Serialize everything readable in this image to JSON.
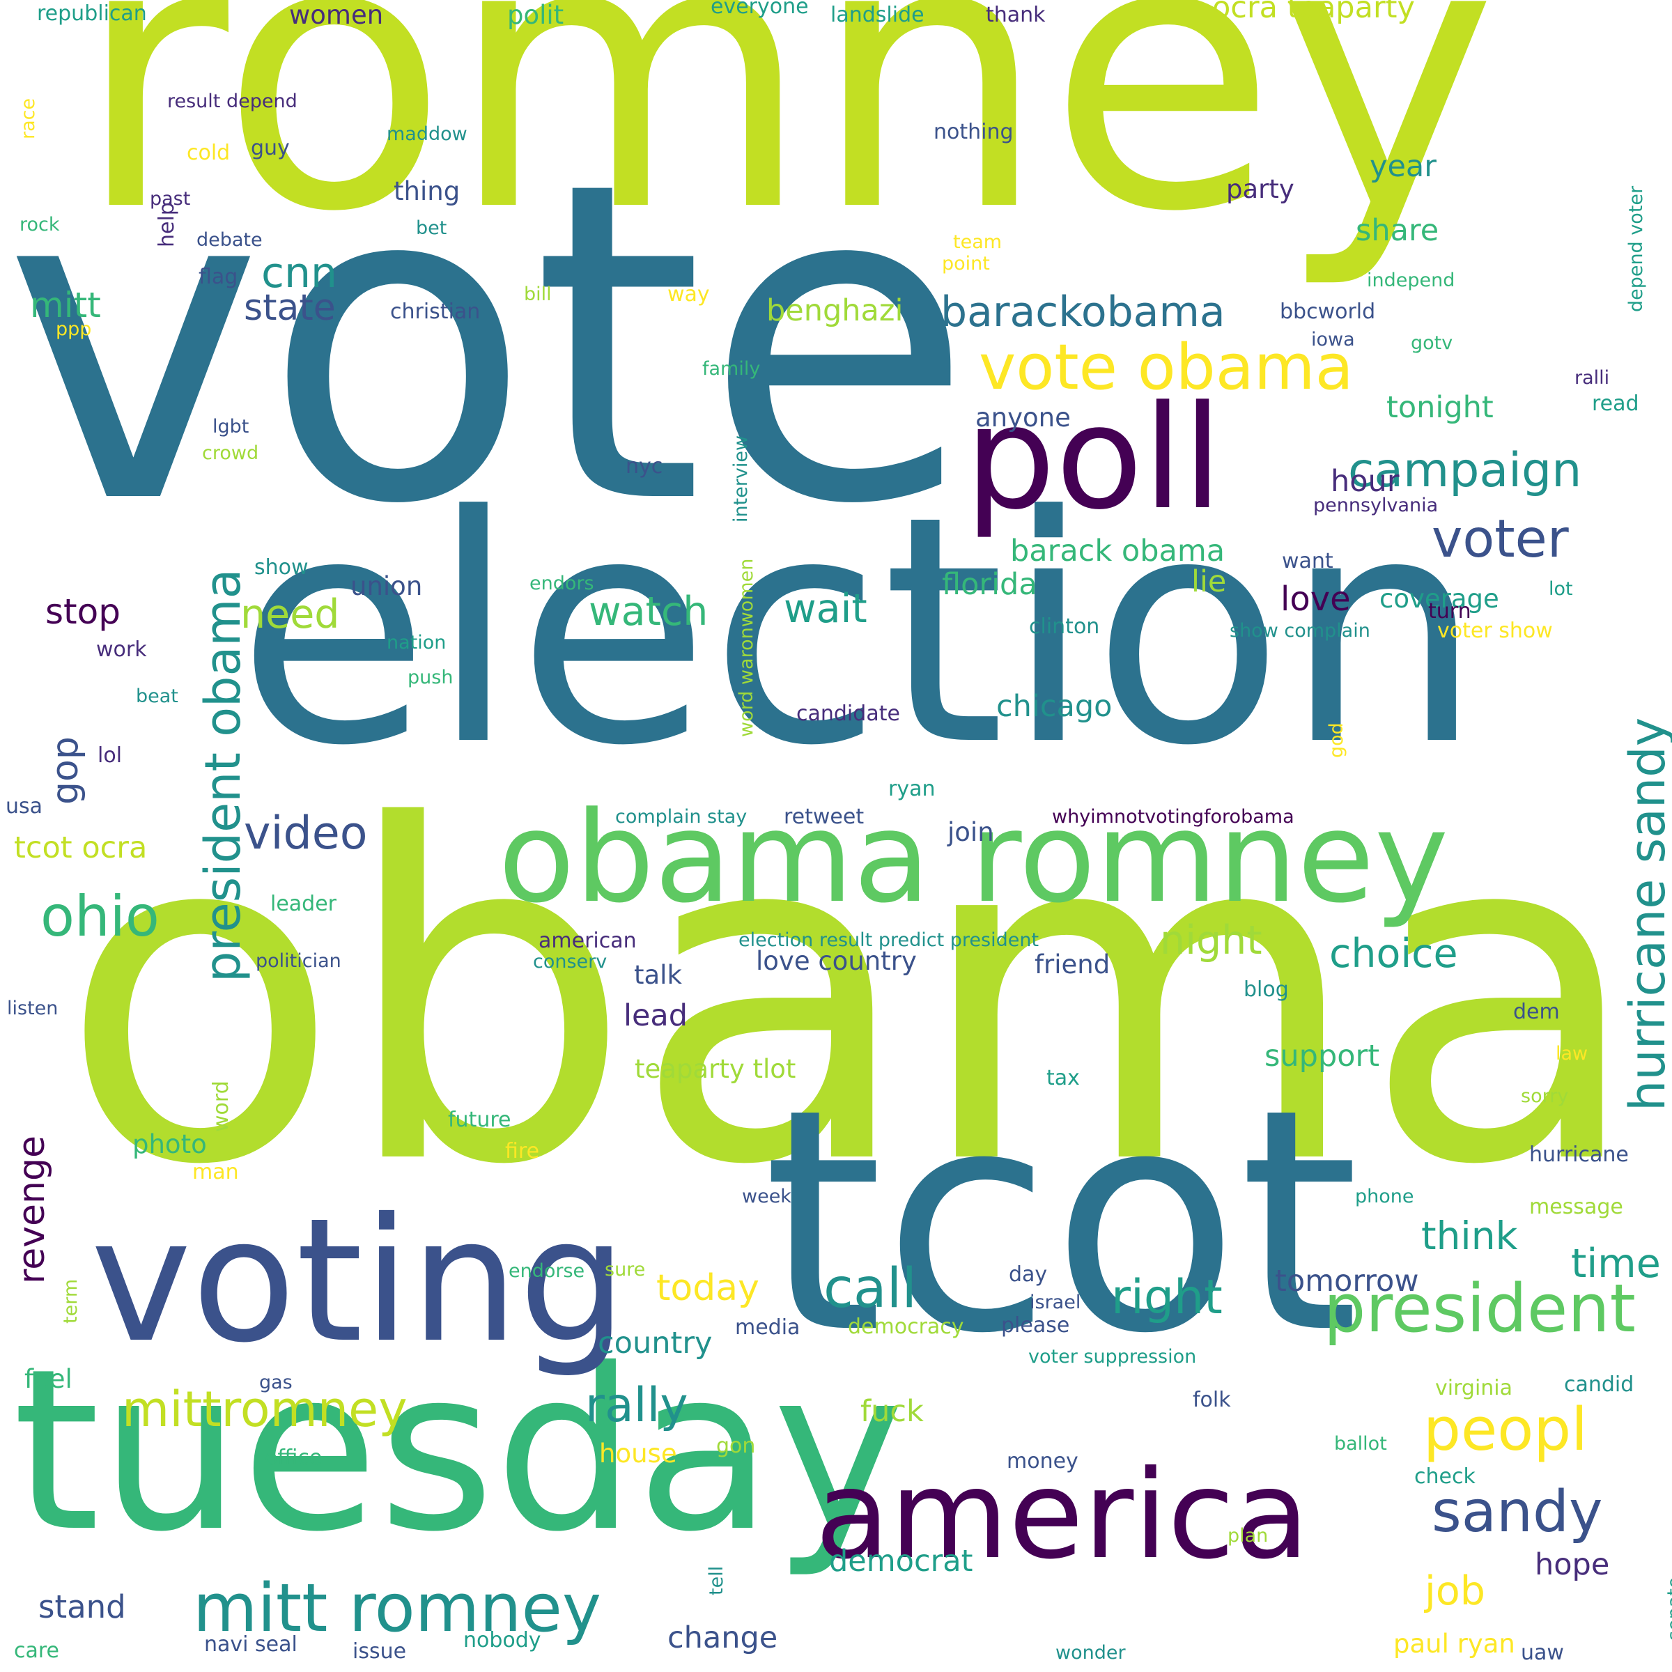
{
  "palette": {
    "c0": "#c2df23",
    "c1": "#b2dd2d",
    "c2": "#5ec962",
    "c3": "#35b779",
    "c4": "#21918c",
    "c5": "#2c728e",
    "c6": "#3b528b",
    "c7": "#472d7b",
    "c8": "#440154",
    "c9": "#fde725",
    "c10": "#a0da39",
    "c11": "#1f9e89"
  },
  "words": [
    {
      "t": "romney"
    },
    {
      "t": "vote"
    },
    {
      "t": "election"
    },
    {
      "t": "obama"
    },
    {
      "t": "tuesday"
    },
    {
      "t": "tcot"
    },
    {
      "t": "voting"
    },
    {
      "t": "america"
    },
    {
      "t": "obama romney"
    },
    {
      "t": "poll"
    },
    {
      "t": "vote obama"
    },
    {
      "t": "barackobama"
    },
    {
      "t": "mitt romney"
    },
    {
      "t": "president"
    },
    {
      "t": "mittromney"
    },
    {
      "t": "president obama"
    },
    {
      "t": "hurricane sandy"
    },
    {
      "t": "campaign"
    },
    {
      "t": "voter"
    },
    {
      "t": "cnn"
    },
    {
      "t": "state"
    },
    {
      "t": "mitt"
    },
    {
      "t": "benghazi"
    },
    {
      "t": "ocra teaparty"
    },
    {
      "t": "need"
    },
    {
      "t": "watch"
    },
    {
      "t": "wait"
    },
    {
      "t": "ohio"
    },
    {
      "t": "video"
    },
    {
      "t": "gop"
    },
    {
      "t": "stop"
    },
    {
      "t": "tcot ocra"
    },
    {
      "t": "revenge"
    },
    {
      "t": "barack obama"
    },
    {
      "t": "florida"
    },
    {
      "t": "love"
    },
    {
      "t": "call"
    },
    {
      "t": "right"
    },
    {
      "t": "think"
    },
    {
      "t": "sandy"
    },
    {
      "t": "peopl"
    },
    {
      "t": "rally"
    },
    {
      "t": "job"
    },
    {
      "t": "night"
    },
    {
      "t": "choice"
    },
    {
      "t": "time"
    },
    {
      "t": "today"
    },
    {
      "t": "stand"
    },
    {
      "t": "change"
    },
    {
      "t": "hope"
    },
    {
      "t": "democrat"
    },
    {
      "t": "chicago"
    },
    {
      "t": "tonight"
    },
    {
      "t": "year"
    },
    {
      "t": "share"
    },
    {
      "t": "hour"
    },
    {
      "t": "lie"
    },
    {
      "t": "lead"
    },
    {
      "t": "support"
    },
    {
      "t": "tomorrow"
    },
    {
      "t": "country"
    },
    {
      "t": "fuck"
    },
    {
      "t": "paul ryan"
    },
    {
      "t": "house"
    },
    {
      "t": "photo"
    },
    {
      "t": "love country"
    },
    {
      "t": "coverage"
    },
    {
      "t": "anyone"
    },
    {
      "t": "women"
    },
    {
      "t": "polit"
    },
    {
      "t": "party"
    },
    {
      "t": "thing"
    },
    {
      "t": "talk"
    },
    {
      "t": "friend"
    },
    {
      "t": "union"
    },
    {
      "t": "republican"
    },
    {
      "t": "everyone"
    },
    {
      "t": "landslide"
    },
    {
      "t": "thank"
    },
    {
      "t": "result depend"
    },
    {
      "t": "race"
    },
    {
      "t": "maddow"
    },
    {
      "t": "nothing"
    },
    {
      "t": "cold"
    },
    {
      "t": "guy"
    },
    {
      "t": "past"
    },
    {
      "t": "help"
    },
    {
      "t": "rock"
    },
    {
      "t": "debate"
    },
    {
      "t": "bet"
    },
    {
      "t": "team"
    },
    {
      "t": "depend voter"
    },
    {
      "t": "point"
    },
    {
      "t": "flag"
    },
    {
      "t": "christian"
    },
    {
      "t": "bill"
    },
    {
      "t": "way"
    },
    {
      "t": "independ"
    },
    {
      "t": "ppp"
    },
    {
      "t": "bbcworld"
    },
    {
      "t": "iowa"
    },
    {
      "t": "gotv"
    },
    {
      "t": "family"
    },
    {
      "t": "ralli"
    },
    {
      "t": "read"
    },
    {
      "t": "lgbt"
    },
    {
      "t": "crowd"
    },
    {
      "t": "interview"
    },
    {
      "t": "nyc"
    },
    {
      "t": "pennsylvania"
    },
    {
      "t": "want"
    },
    {
      "t": "show"
    },
    {
      "t": "endors"
    },
    {
      "t": "word waronwomen"
    },
    {
      "t": "lot"
    },
    {
      "t": "turn"
    },
    {
      "t": "show complain"
    },
    {
      "t": "voter show"
    },
    {
      "t": "work"
    },
    {
      "t": "nation"
    },
    {
      "t": "clinton"
    },
    {
      "t": "push"
    },
    {
      "t": "beat"
    },
    {
      "t": "candidate"
    },
    {
      "t": "lol"
    },
    {
      "t": "god"
    },
    {
      "t": "usa"
    },
    {
      "t": "ryan"
    },
    {
      "t": "complain stay"
    },
    {
      "t": "retweet"
    },
    {
      "t": "join"
    },
    {
      "t": "whyimnotvotingforobama"
    },
    {
      "t": "leader"
    },
    {
      "t": "american"
    },
    {
      "t": "election result predict president"
    },
    {
      "t": "politician"
    },
    {
      "t": "conserv"
    },
    {
      "t": "listen"
    },
    {
      "t": "blog"
    },
    {
      "t": "dem"
    },
    {
      "t": "law"
    },
    {
      "t": "teaparty tlot"
    },
    {
      "t": "tax"
    },
    {
      "t": "sorry"
    },
    {
      "t": "word"
    },
    {
      "t": "future"
    },
    {
      "t": "fire"
    },
    {
      "t": "man"
    },
    {
      "t": "hurricane"
    },
    {
      "t": "week"
    },
    {
      "t": "phone"
    },
    {
      "t": "message"
    },
    {
      "t": "endorse"
    },
    {
      "t": "sure"
    },
    {
      "t": "term"
    },
    {
      "t": "day"
    },
    {
      "t": "israel"
    },
    {
      "t": "media"
    },
    {
      "t": "democracy"
    },
    {
      "t": "please"
    },
    {
      "t": "voter suppression"
    },
    {
      "t": "candid"
    },
    {
      "t": "virginia"
    },
    {
      "t": "feel"
    },
    {
      "t": "gas"
    },
    {
      "t": "folk"
    },
    {
      "t": "gon"
    },
    {
      "t": "ballot"
    },
    {
      "t": "office"
    },
    {
      "t": "money"
    },
    {
      "t": "check"
    },
    {
      "t": "plan"
    },
    {
      "t": "tell"
    },
    {
      "t": "senate"
    },
    {
      "t": "care"
    },
    {
      "t": "navi seal"
    },
    {
      "t": "issue"
    },
    {
      "t": "nobody"
    },
    {
      "t": "wonder"
    },
    {
      "t": "uaw"
    }
  ]
}
